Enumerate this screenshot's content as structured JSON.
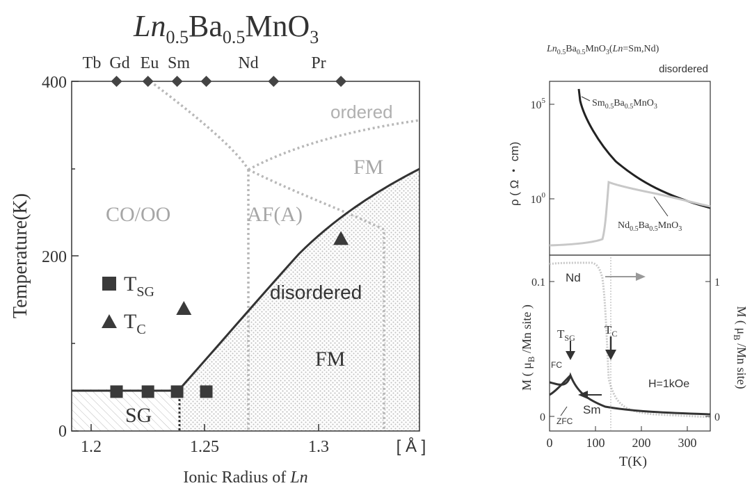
{
  "left_chart": {
    "title": {
      "ln": "Ln",
      "sub1": "0.5",
      "ba": "Ba",
      "sub2": "0.5",
      "mno": "MnO",
      "sub3": "3"
    },
    "xlabel": {
      "prefix": "Ionic Radius of ",
      "ln": "Ln"
    },
    "ylabel": "Temperature(K)",
    "x_unit": "[ Å ]",
    "x_ticks": [
      "1.2",
      "1.25",
      "1.3"
    ],
    "y_ticks": [
      "0",
      "200",
      "400"
    ],
    "elements": [
      "Tb",
      "Gd",
      "Eu",
      "Sm",
      "Nd",
      "Pr"
    ],
    "region_labels": {
      "ordered": "ordered",
      "fm_top": "FM",
      "co_oo": "CO/OO",
      "af_a": "AF(A)",
      "disordered": "disordered",
      "fm_bottom": "FM",
      "sg": "SG"
    },
    "legend": {
      "tsg_main": "T",
      "tsg_sub": "SG",
      "tc_main": "T",
      "tc_sub": "C"
    },
    "colors": {
      "line": "#333333",
      "phase_boundary": "#b8b8b8",
      "label_gray": "#a6a6a6",
      "marker": "#3a3a3a",
      "dots": "#c4c4c4"
    }
  },
  "right_chart": {
    "title": {
      "ln": "Ln",
      "sub1": "0.5",
      "ba": "Ba",
      "sub2": "0.5",
      "mno": "MnO",
      "sub3": "3",
      "paren": "(",
      "ln2": "Ln",
      "rest": "=Sm,Nd)"
    },
    "disordered_label": "disordered",
    "top_ylabel": "ρ ( Ω ・ cm)",
    "top_y_ticks": [
      {
        "base": "10",
        "exp": "5"
      },
      {
        "base": "10",
        "exp": "0"
      }
    ],
    "sm_label": {
      "a": "Sm",
      "b": "0.5",
      "c": "Ba",
      "d": "0.5",
      "e": "MnO",
      "f": "3"
    },
    "nd_label": {
      "a": "Nd",
      "b": "0.5",
      "c": "Ba",
      "d": "0.5",
      "e": "MnO",
      "f": "3"
    },
    "bottom_ylabel_left": {
      "a": "M ( μ",
      "b": "B",
      "c": " /Mn site )"
    },
    "bottom_ylabel_right": {
      "a": "M ( μ",
      "b": "B",
      "c": " /Mn site)"
    },
    "left_y_ticks": [
      "0.1",
      "0"
    ],
    "right_y_ticks": [
      "1",
      "0"
    ],
    "x_ticks": [
      "0",
      "100",
      "200",
      "300"
    ],
    "xlabel": "T(K)",
    "annotations": {
      "nd": "Nd",
      "tsg_main": "T",
      "tsg_sub": "SG",
      "tc_main": "T",
      "tc_sub": "C",
      "fc": "FC",
      "zfc": "ZFC",
      "sm": "Sm",
      "field": "H=1kOe"
    }
  },
  "chart_data": [
    {
      "type": "scatter",
      "title": "Ln0.5Ba0.5MnO3",
      "xlabel": "Ionic Radius of Ln [Å]",
      "ylabel": "Temperature(K)",
      "xlim": [
        1.18,
        1.335
      ],
      "ylim": [
        0,
        400
      ],
      "series": [
        {
          "name": "TSG",
          "x": [
            1.2,
            1.214,
            1.227,
            1.24
          ],
          "y": [
            45,
            45,
            45,
            45
          ]
        },
        {
          "name": "TC",
          "x": [
            1.23,
            1.3
          ],
          "y": [
            140,
            220
          ]
        }
      ],
      "tc_boundary": {
        "x": [
          1.24,
          1.335
        ],
        "y": [
          45,
          296
        ]
      },
      "element_markers": {
        "labels": [
          "Tb",
          "Gd",
          "Eu",
          "Sm",
          "Nd",
          "Pr"
        ],
        "x": [
          1.2,
          1.214,
          1.227,
          1.24,
          1.27,
          1.3
        ],
        "y": 400
      },
      "regions": [
        "ordered",
        "FM",
        "CO/OO",
        "AF(A)",
        "disordered",
        "FM",
        "SG"
      ]
    },
    {
      "type": "line",
      "title": "Ln0.5Ba0.5MnO3(Ln=Sm,Nd)",
      "subtitle": "disordered",
      "ylabel": "ρ ( Ω ・ cm)",
      "yscale": "log",
      "xlim": [
        0,
        350
      ],
      "series": [
        {
          "name": "Sm0.5Ba0.5MnO3",
          "x": [
            55,
            70,
            90,
            110,
            140,
            180,
            220,
            260,
            300,
            350
          ],
          "y": [
            170000,
            14000,
            3200,
            600,
            120,
            30,
            12,
            6,
            3.2,
            1.6
          ]
        },
        {
          "name": "Nd0.5Ba0.5MnO3",
          "x": [
            0,
            50,
            100,
            120,
            130,
            135,
            140,
            180,
            220,
            260,
            300,
            350
          ],
          "y": [
            0.002,
            0.0025,
            0.004,
            0.006,
            0.1,
            10,
            20,
            12,
            7,
            4.5,
            2.8,
            1.7
          ]
        }
      ]
    },
    {
      "type": "line",
      "xlabel": "T(K)",
      "ylabel": "M ( μB /Mn site )",
      "ylim": [
        -0.005,
        0.125
      ],
      "right_ylabel": "M ( μB /Mn site)",
      "right_ylim": [
        -0.05,
        1.25
      ],
      "xlim": [
        0,
        350
      ],
      "series": [
        {
          "name": "Sm FC",
          "x": [
            0,
            20,
            40,
            60,
            80,
            100,
            130,
            160,
            200,
            250,
            300,
            350
          ],
          "y": [
            0.037,
            0.034,
            0.031,
            0.026,
            0.02,
            0.016,
            0.013,
            0.011,
            0.009,
            0.007,
            0.006,
            0.005
          ]
        },
        {
          "name": "Sm ZFC",
          "x": [
            0,
            10,
            20,
            30,
            40,
            45
          ],
          "y": [
            0.016,
            0.019,
            0.023,
            0.027,
            0.031,
            0.033
          ]
        },
        {
          "name": "Nd",
          "axis": "right",
          "x": [
            0,
            10,
            30,
            60,
            90,
            110,
            120,
            130,
            135,
            140,
            180,
            250,
            350
          ],
          "y": [
            1.12,
            1.14,
            1.15,
            1.15,
            1.15,
            1.14,
            1.1,
            0.9,
            0.4,
            0.1,
            0.05,
            0.02,
            0.0
          ]
        }
      ],
      "annotations": [
        "TSG",
        "TC",
        "FC",
        "ZFC",
        "Sm",
        "Nd",
        "H=1kOe"
      ]
    }
  ]
}
